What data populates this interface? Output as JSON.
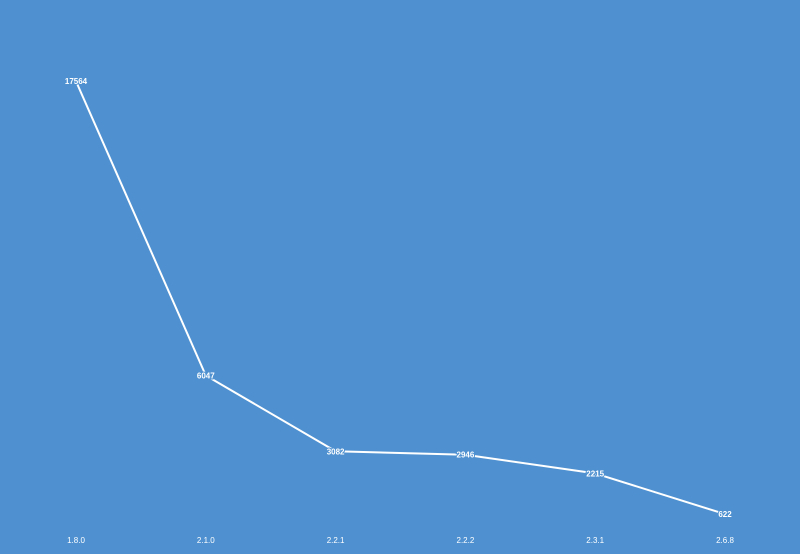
{
  "chart_data": {
    "type": "line",
    "title": "",
    "xlabel": "",
    "ylabel": "",
    "categories": [
      "1.8.0",
      "2.1.0",
      "2.2.1",
      "2.2.2",
      "2.3.1",
      "2.6.8"
    ],
    "series": [
      {
        "values": [
          17564,
          6047,
          3082,
          2946,
          2215,
          622
        ]
      }
    ],
    "data_labels": [
      "17564",
      "6047",
      "3082",
      "2946",
      "2215",
      "622"
    ],
    "ylim": [
      0,
      18200
    ],
    "grid": false,
    "drop_lines": true,
    "legend": "none",
    "colors": {
      "background": "#4f91d0",
      "line": "#ffffff",
      "text": "#ffffff"
    }
  }
}
